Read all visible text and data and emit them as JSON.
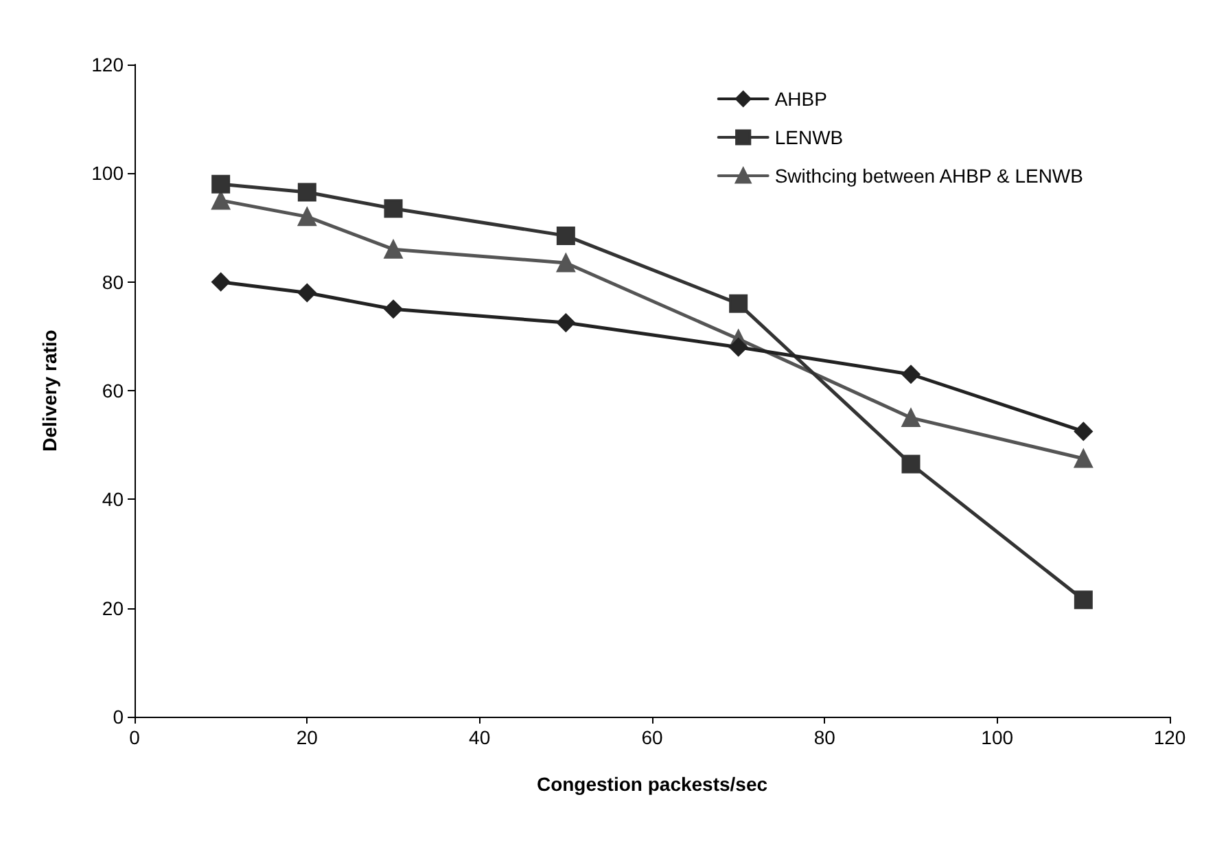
{
  "chart_data": {
    "type": "line",
    "xlabel": "Congestion packests/sec",
    "ylabel": "Delivery ratio",
    "x": [
      10,
      20,
      30,
      50,
      70,
      90,
      110
    ],
    "series": [
      {
        "name": "AHBP",
        "color": "#222222",
        "marker": "diamond",
        "values": [
          80,
          78,
          75,
          72.5,
          68,
          63,
          52.5
        ]
      },
      {
        "name": "LENWB",
        "color": "#333333",
        "marker": "square",
        "values": [
          98,
          96.5,
          93.5,
          88.5,
          76,
          46.5,
          21.5
        ]
      },
      {
        "name": "Swithcing between AHBP & LENWB",
        "color": "#555555",
        "marker": "triangle",
        "values": [
          95,
          92,
          86,
          83.5,
          69.5,
          55,
          47.5
        ]
      }
    ],
    "xlim": [
      0,
      120
    ],
    "xticks": [
      0,
      20,
      40,
      60,
      80,
      100,
      120
    ],
    "ylim": [
      0,
      120
    ],
    "yticks": [
      0,
      20,
      40,
      60,
      80,
      100,
      120
    ],
    "grid": false,
    "legend": "top right",
    "line_style": "solid"
  }
}
